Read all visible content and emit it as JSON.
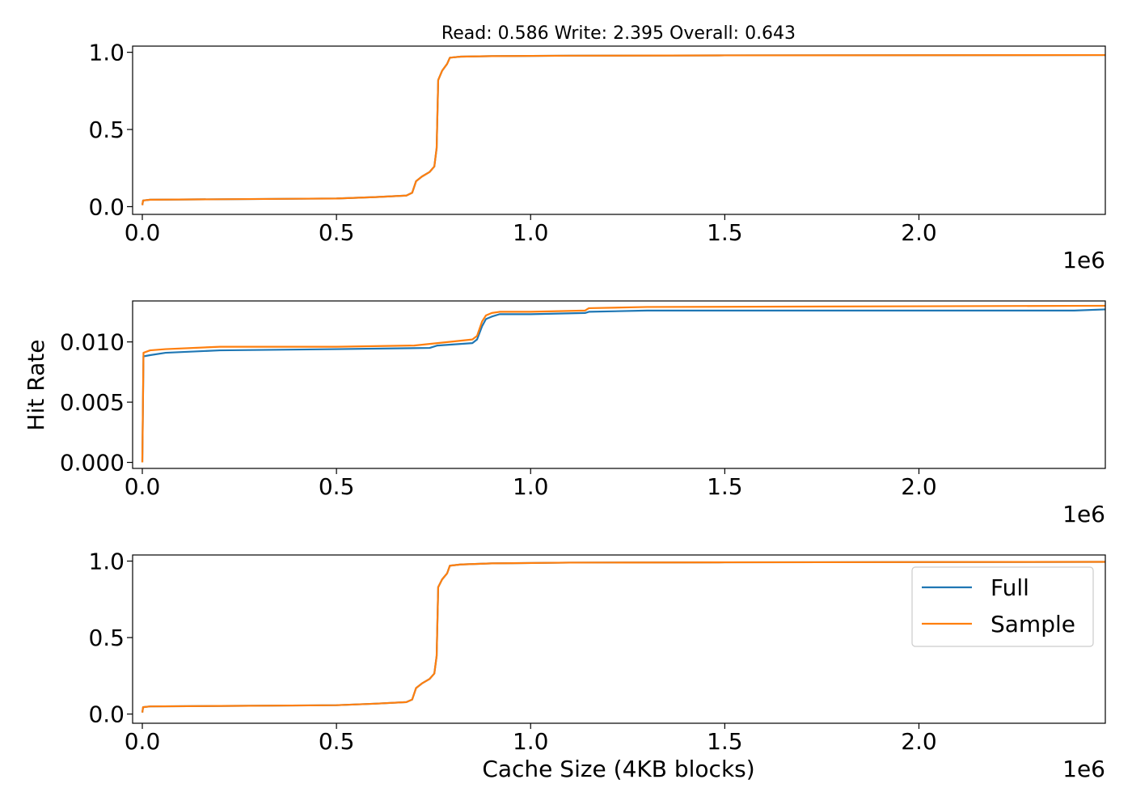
{
  "figure": {
    "title": "Read: 0.586 Write: 2.395 Overall: 0.643",
    "ylabel": "Hit Rate",
    "xlabel": "Cache Size (4KB blocks)",
    "x_offset": "1e6"
  },
  "colors": {
    "full": "#1f77b4",
    "sample": "#ff7f0e"
  },
  "chart_data": [
    {
      "type": "line",
      "xlim": [
        -25000,
        2480000
      ],
      "ylim": [
        -0.05,
        1.04
      ],
      "x_ticks": [
        0,
        500000,
        1000000,
        1500000,
        2000000
      ],
      "x_tick_labels": [
        "0.0",
        "0.5",
        "1.0",
        "1.5",
        "2.0"
      ],
      "y_ticks": [
        0,
        0.5,
        1
      ],
      "y_tick_labels": [
        "0.0",
        "0.5",
        "1.0"
      ],
      "series": [
        {
          "name": "Full",
          "color": "#1f77b4",
          "points": [
            [
              0,
              0.01
            ],
            [
              2000,
              0.04
            ],
            [
              20000,
              0.045
            ],
            [
              200000,
              0.048
            ],
            [
              500000,
              0.053
            ],
            [
              600000,
              0.062
            ],
            [
              680000,
              0.072
            ],
            [
              695000,
              0.09
            ],
            [
              705000,
              0.165
            ],
            [
              720000,
              0.195
            ],
            [
              740000,
              0.225
            ],
            [
              752000,
              0.26
            ],
            [
              758000,
              0.38
            ],
            [
              762000,
              0.82
            ],
            [
              772000,
              0.88
            ],
            [
              785000,
              0.925
            ],
            [
              792000,
              0.965
            ],
            [
              820000,
              0.972
            ],
            [
              900000,
              0.975
            ],
            [
              1100000,
              0.978
            ],
            [
              1500000,
              0.98
            ],
            [
              2480000,
              0.982
            ]
          ]
        },
        {
          "name": "Sample",
          "color": "#ff7f0e",
          "points": [
            [
              0,
              0.01
            ],
            [
              2000,
              0.04
            ],
            [
              20000,
              0.045
            ],
            [
              200000,
              0.048
            ],
            [
              500000,
              0.053
            ],
            [
              600000,
              0.062
            ],
            [
              680000,
              0.072
            ],
            [
              695000,
              0.09
            ],
            [
              705000,
              0.165
            ],
            [
              720000,
              0.195
            ],
            [
              740000,
              0.225
            ],
            [
              752000,
              0.26
            ],
            [
              758000,
              0.38
            ],
            [
              762000,
              0.82
            ],
            [
              772000,
              0.88
            ],
            [
              785000,
              0.925
            ],
            [
              792000,
              0.965
            ],
            [
              820000,
              0.972
            ],
            [
              900000,
              0.975
            ],
            [
              1100000,
              0.978
            ],
            [
              1500000,
              0.98
            ],
            [
              2480000,
              0.982
            ]
          ]
        }
      ]
    },
    {
      "type": "line",
      "xlim": [
        -25000,
        2480000
      ],
      "ylim": [
        -0.0005,
        0.0134
      ],
      "x_ticks": [
        0,
        500000,
        1000000,
        1500000,
        2000000
      ],
      "x_tick_labels": [
        "0.0",
        "0.5",
        "1.0",
        "1.5",
        "2.0"
      ],
      "y_ticks": [
        0,
        0.005,
        0.01
      ],
      "y_tick_labels": [
        "0.000",
        "0.005",
        "0.010"
      ],
      "series": [
        {
          "name": "Full",
          "color": "#1f77b4",
          "points": [
            [
              0,
              0.0
            ],
            [
              3000,
              0.0088
            ],
            [
              20000,
              0.0089
            ],
            [
              60000,
              0.0091
            ],
            [
              200000,
              0.0093
            ],
            [
              500000,
              0.0094
            ],
            [
              740000,
              0.0095
            ],
            [
              760000,
              0.0097
            ],
            [
              850000,
              0.0099
            ],
            [
              862000,
              0.0102
            ],
            [
              875000,
              0.0113
            ],
            [
              885000,
              0.0119
            ],
            [
              900000,
              0.0121
            ],
            [
              920000,
              0.0123
            ],
            [
              1000000,
              0.0123
            ],
            [
              1140000,
              0.0124
            ],
            [
              1150000,
              0.0125
            ],
            [
              1300000,
              0.0126
            ],
            [
              2400000,
              0.0126
            ],
            [
              2480000,
              0.0127
            ]
          ]
        },
        {
          "name": "Sample",
          "color": "#ff7f0e",
          "points": [
            [
              0,
              0.0
            ],
            [
              3000,
              0.0091
            ],
            [
              20000,
              0.0093
            ],
            [
              60000,
              0.0094
            ],
            [
              200000,
              0.0096
            ],
            [
              500000,
              0.0096
            ],
            [
              700000,
              0.0097
            ],
            [
              760000,
              0.0099
            ],
            [
              850000,
              0.0102
            ],
            [
              862000,
              0.0105
            ],
            [
              875000,
              0.0117
            ],
            [
              885000,
              0.0122
            ],
            [
              900000,
              0.0124
            ],
            [
              920000,
              0.0125
            ],
            [
              1000000,
              0.0125
            ],
            [
              1140000,
              0.0126
            ],
            [
              1150000,
              0.0128
            ],
            [
              1300000,
              0.0129
            ],
            [
              2480000,
              0.013
            ]
          ]
        }
      ]
    },
    {
      "type": "line",
      "xlim": [
        -25000,
        2480000
      ],
      "ylim": [
        -0.06,
        1.04
      ],
      "x_ticks": [
        0,
        500000,
        1000000,
        1500000,
        2000000
      ],
      "x_tick_labels": [
        "0.0",
        "0.5",
        "1.0",
        "1.5",
        "2.0"
      ],
      "y_ticks": [
        0,
        0.5,
        1
      ],
      "y_tick_labels": [
        "0.0",
        "0.5",
        "1.0"
      ],
      "legend": {
        "entries": [
          "Full",
          "Sample"
        ],
        "placement": "upper right"
      },
      "series": [
        {
          "name": "Full",
          "color": "#1f77b4",
          "points": [
            [
              0,
              0.01
            ],
            [
              2000,
              0.045
            ],
            [
              20000,
              0.05
            ],
            [
              200000,
              0.053
            ],
            [
              500000,
              0.058
            ],
            [
              600000,
              0.068
            ],
            [
              680000,
              0.078
            ],
            [
              695000,
              0.095
            ],
            [
              705000,
              0.17
            ],
            [
              720000,
              0.2
            ],
            [
              740000,
              0.23
            ],
            [
              752000,
              0.265
            ],
            [
              758000,
              0.38
            ],
            [
              762000,
              0.83
            ],
            [
              772000,
              0.88
            ],
            [
              785000,
              0.92
            ],
            [
              792000,
              0.97
            ],
            [
              820000,
              0.978
            ],
            [
              900000,
              0.985
            ],
            [
              1100000,
              0.99
            ],
            [
              1500000,
              0.992
            ],
            [
              2480000,
              0.995
            ]
          ]
        },
        {
          "name": "Sample",
          "color": "#ff7f0e",
          "points": [
            [
              0,
              0.01
            ],
            [
              2000,
              0.045
            ],
            [
              20000,
              0.05
            ],
            [
              200000,
              0.053
            ],
            [
              500000,
              0.058
            ],
            [
              600000,
              0.068
            ],
            [
              680000,
              0.078
            ],
            [
              695000,
              0.095
            ],
            [
              705000,
              0.17
            ],
            [
              720000,
              0.2
            ],
            [
              740000,
              0.23
            ],
            [
              752000,
              0.265
            ],
            [
              758000,
              0.38
            ],
            [
              762000,
              0.83
            ],
            [
              772000,
              0.88
            ],
            [
              785000,
              0.92
            ],
            [
              792000,
              0.97
            ],
            [
              820000,
              0.978
            ],
            [
              900000,
              0.985
            ],
            [
              1100000,
              0.99
            ],
            [
              1500000,
              0.992
            ],
            [
              2480000,
              0.995
            ]
          ]
        }
      ]
    }
  ]
}
